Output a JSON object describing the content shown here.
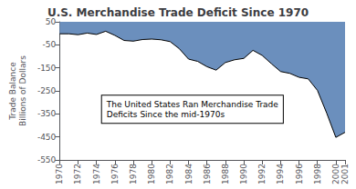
{
  "chart_data": {
    "type": "area",
    "title": "U.S. Merchandise Trade Deficit Since 1970",
    "ylabel": "Trade Balance\nBillions of Dollars",
    "x": [
      1970,
      1971,
      1972,
      1973,
      1974,
      1975,
      1976,
      1977,
      1978,
      1979,
      1980,
      1981,
      1982,
      1983,
      1984,
      1985,
      1986,
      1987,
      1988,
      1989,
      1990,
      1991,
      1992,
      1993,
      1994,
      1995,
      1996,
      1997,
      1998,
      1999,
      2000,
      2001
    ],
    "values": [
      -2,
      -2,
      -6,
      1,
      -5,
      9,
      -9,
      -31,
      -34,
      -27,
      -25,
      -28,
      -36,
      -67,
      -112,
      -122,
      -145,
      -160,
      -127,
      -115,
      -109,
      -74,
      -96,
      -132,
      -166,
      -174,
      -191,
      -198,
      -248,
      -346,
      -452,
      -430
    ],
    "color": "#6B8FBD",
    "xlim": [
      1970,
      2001
    ],
    "xticks": [
      1970,
      1972,
      1974,
      1976,
      1978,
      1980,
      1982,
      1984,
      1986,
      1988,
      1990,
      1992,
      1994,
      1996,
      1998,
      2000
    ],
    "ylim": [
      -550,
      50
    ],
    "yticks": [
      50,
      -50,
      -150,
      -250,
      -350,
      -450,
      -550
    ],
    "annotation": "The United States Ran Merchandise Trade\nDeficits Since the mid-1970s",
    "grid": false
  }
}
